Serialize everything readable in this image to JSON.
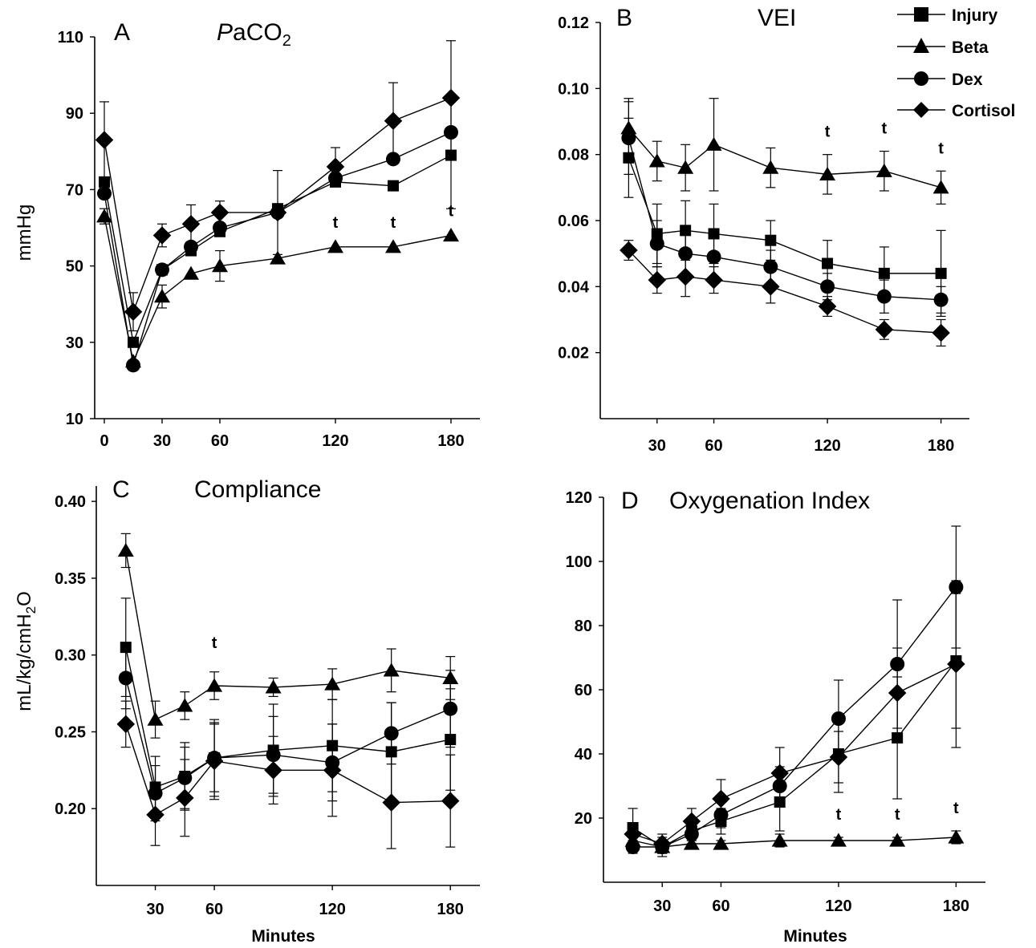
{
  "legend": [
    {
      "name": "Injury",
      "marker": "square"
    },
    {
      "name": "Beta",
      "marker": "triangle"
    },
    {
      "name": "Dex",
      "marker": "circle"
    },
    {
      "name": "Cortisol",
      "marker": "diamond"
    }
  ],
  "colors": {
    "ink": "#000000",
    "background": "#ffffff"
  },
  "chart_data": [
    {
      "type": "line",
      "panel_letter": "A",
      "title": "PaCO2",
      "ylabel": "mmHg",
      "xlabel": "",
      "ylim": [
        10,
        110
      ],
      "yticks": [
        10,
        30,
        50,
        70,
        90,
        110
      ],
      "ytick_labels": [
        "10",
        "30",
        "50",
        "70",
        "90",
        "110"
      ],
      "xlim": [
        -5,
        195
      ],
      "xticks": [
        0,
        30,
        60,
        120,
        180
      ],
      "xtick_labels": [
        "0",
        "30",
        "60",
        "120",
        "180"
      ],
      "x": [
        0,
        15,
        30,
        45,
        60,
        90,
        120,
        150,
        180
      ],
      "series": [
        {
          "name": "Injury",
          "marker": "square",
          "values": [
            72,
            30,
            49,
            54,
            59,
            65,
            72,
            71,
            79
          ],
          "errors": [
            0,
            0,
            0,
            0,
            0,
            0,
            0,
            0,
            14
          ]
        },
        {
          "name": "Beta",
          "marker": "triangle",
          "values": [
            63,
            25,
            42,
            48,
            50,
            52,
            55,
            55,
            58
          ],
          "errors": [
            2,
            0,
            3,
            0,
            4,
            0,
            0,
            0,
            0
          ]
        },
        {
          "name": "Dex",
          "marker": "circle",
          "values": [
            69,
            24,
            49,
            55,
            60,
            64,
            73,
            78,
            85
          ],
          "errors": [
            0,
            0,
            0,
            0,
            0,
            0,
            0,
            0,
            0
          ]
        },
        {
          "name": "Cortisol",
          "marker": "diamond",
          "values": [
            83,
            38,
            58,
            61,
            64,
            64,
            76,
            88,
            94
          ],
          "errors": [
            10,
            5,
            3,
            5,
            3,
            11,
            5,
            10,
            15
          ]
        }
      ],
      "significance": [
        {
          "x": 120,
          "label": "t"
        },
        {
          "x": 150,
          "label": "t"
        },
        {
          "x": 180,
          "label": "t"
        }
      ]
    },
    {
      "type": "line",
      "panel_letter": "B",
      "title": "VEI",
      "ylabel": "",
      "xlabel": "",
      "ylim": [
        0,
        0.12
      ],
      "yticks": [
        0.02,
        0.04,
        0.06,
        0.08,
        0.1,
        0.12
      ],
      "ytick_labels": [
        "0.02",
        "0.04",
        "0.06",
        "0.08",
        "0.10",
        "0.12"
      ],
      "xlim": [
        0,
        195
      ],
      "xticks": [
        30,
        60,
        120,
        180
      ],
      "xtick_labels": [
        "30",
        "60",
        "120",
        "180"
      ],
      "x": [
        15,
        30,
        45,
        60,
        90,
        120,
        150,
        180
      ],
      "series": [
        {
          "name": "Injury",
          "marker": "square",
          "values": [
            0.079,
            0.056,
            0.057,
            0.056,
            0.054,
            0.047,
            0.044,
            0.044
          ],
          "errors": [
            0.012,
            0.009,
            0.009,
            0.009,
            0.006,
            0.007,
            0.008,
            0.013
          ]
        },
        {
          "name": "Beta",
          "marker": "triangle",
          "values": [
            0.088,
            0.078,
            0.076,
            0.083,
            0.076,
            0.074,
            0.075,
            0.07
          ],
          "errors": [
            0.009,
            0.006,
            0.007,
            0.014,
            0.006,
            0.006,
            0.006,
            0.005
          ]
        },
        {
          "name": "Dex",
          "marker": "circle",
          "values": [
            0.085,
            0.053,
            0.05,
            0.049,
            0.046,
            0.04,
            0.037,
            0.036
          ],
          "errors": [
            0.011,
            0.007,
            0.006,
            0.006,
            0.005,
            0.004,
            0.005,
            0.004
          ]
        },
        {
          "name": "Cortisol",
          "marker": "diamond",
          "values": [
            0.051,
            0.042,
            0.043,
            0.042,
            0.04,
            0.034,
            0.027,
            0.026
          ],
          "errors": [
            0.003,
            0.004,
            0.006,
            0.004,
            0.005,
            0.003,
            0.003,
            0.004
          ]
        }
      ],
      "significance": [
        {
          "x": 120,
          "label": "t"
        },
        {
          "x": 150,
          "label": "t"
        },
        {
          "x": 180,
          "label": "t"
        }
      ]
    },
    {
      "type": "line",
      "panel_letter": "C",
      "title": "Compliance",
      "ylabel": "mL/kg/cmH2O",
      "xlabel": "Minutes",
      "ylim": [
        0.15,
        0.41
      ],
      "yticks": [
        0.2,
        0.25,
        0.3,
        0.35,
        0.4
      ],
      "ytick_labels": [
        "0.20",
        "0.25",
        "0.30",
        "0.35",
        "0.40"
      ],
      "xlim": [
        0,
        195
      ],
      "xticks": [
        30,
        60,
        120,
        180
      ],
      "xtick_labels": [
        "30",
        "60",
        "120",
        "180"
      ],
      "x": [
        15,
        30,
        45,
        60,
        90,
        120,
        150,
        180
      ],
      "series": [
        {
          "name": "Injury",
          "marker": "square",
          "values": [
            0.305,
            0.214,
            0.221,
            0.233,
            0.238,
            0.241,
            0.237,
            0.245
          ],
          "errors": [
            0.032,
            0.02,
            0.022,
            0.025,
            0.03,
            0.03,
            0.032,
            0.033
          ]
        },
        {
          "name": "Beta",
          "marker": "triangle",
          "values": [
            0.368,
            0.258,
            0.267,
            0.28,
            0.279,
            0.281,
            0.29,
            0.285
          ],
          "errors": [
            0.011,
            0.012,
            0.009,
            0.009,
            0.006,
            0.01,
            0.014,
            0.014
          ]
        },
        {
          "name": "Dex",
          "marker": "circle",
          "values": [
            0.285,
            0.21,
            0.22,
            0.233,
            0.235,
            0.23,
            0.249,
            0.265
          ],
          "errors": [
            0.02,
            0.018,
            0.02,
            0.022,
            0.025,
            0.025,
            0.02,
            0.025
          ]
        },
        {
          "name": "Cortisol",
          "marker": "diamond",
          "values": [
            0.255,
            0.196,
            0.207,
            0.231,
            0.225,
            0.225,
            0.204,
            0.205
          ],
          "errors": [
            0.015,
            0.02,
            0.025,
            0.025,
            0.022,
            0.03,
            0.03,
            0.03
          ]
        }
      ],
      "significance": [
        {
          "x": 60,
          "label": "t"
        }
      ]
    },
    {
      "type": "line",
      "panel_letter": "D",
      "title": "Oxygenation Index",
      "ylabel": "",
      "xlabel": "Minutes",
      "ylim": [
        0,
        120
      ],
      "yticks": [
        20,
        40,
        60,
        80,
        100,
        120
      ],
      "ytick_labels": [
        "20",
        "40",
        "60",
        "80",
        "100",
        "120"
      ],
      "xlim": [
        0,
        195
      ],
      "xticks": [
        30,
        60,
        120,
        180
      ],
      "xtick_labels": [
        "30",
        "60",
        "120",
        "180"
      ],
      "x": [
        15,
        30,
        45,
        60,
        90,
        120,
        150,
        180
      ],
      "series": [
        {
          "name": "Injury",
          "marker": "square",
          "values": [
            17,
            11,
            16,
            19,
            25,
            40,
            45,
            69
          ],
          "errors": [
            6,
            3,
            3,
            4,
            9,
            12,
            19,
            21
          ]
        },
        {
          "name": "Beta",
          "marker": "triangle",
          "values": [
            13,
            11,
            12,
            12,
            13,
            13,
            13,
            14
          ],
          "errors": [
            2,
            2,
            1,
            1,
            2,
            1,
            1,
            2
          ]
        },
        {
          "name": "Dex",
          "marker": "circle",
          "values": [
            11,
            11,
            15,
            21,
            30,
            51,
            68,
            92
          ],
          "errors": [
            2,
            2,
            3,
            4,
            6,
            12,
            20,
            19
          ]
        },
        {
          "name": "Cortisol",
          "marker": "diamond",
          "values": [
            15,
            12,
            19,
            26,
            34,
            39,
            59,
            68
          ],
          "errors": [
            2,
            3,
            4,
            6,
            8,
            8,
            14,
            26
          ]
        }
      ],
      "significance": [
        {
          "x": 120,
          "label": "t"
        },
        {
          "x": 150,
          "label": "t"
        },
        {
          "x": 180,
          "label": "t"
        }
      ]
    }
  ]
}
